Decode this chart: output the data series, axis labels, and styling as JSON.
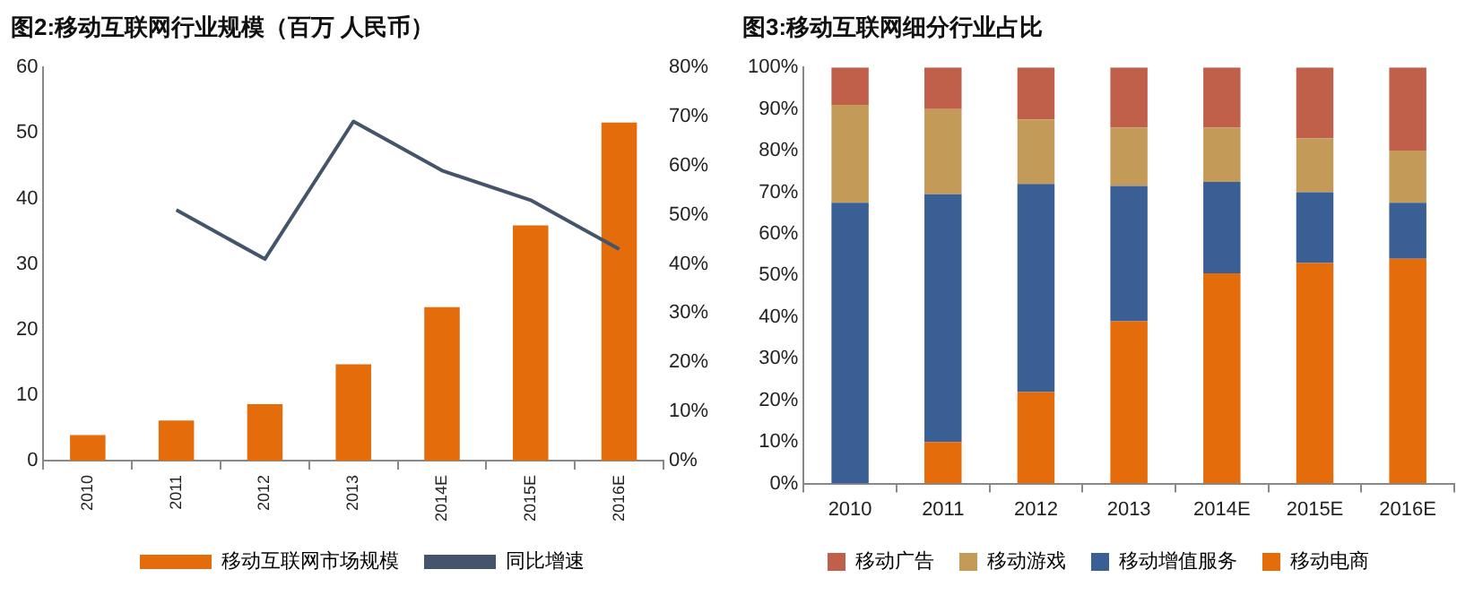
{
  "chart_data": [
    {
      "type": "bar",
      "title": "图2:移动互联网行业规模（百万 人民币）",
      "categories": [
        "2010",
        "2011",
        "2012",
        "2013",
        "2014E",
        "2015E",
        "2016E"
      ],
      "series": [
        {
          "name": "移动互联网市场规模",
          "color": "#e46c0a",
          "values": [
            3.9,
            6.1,
            8.6,
            14.7,
            23.4,
            35.9,
            51.6
          ]
        },
        {
          "name": "同比增速",
          "type": "line",
          "axis": "y2",
          "color": "#44546a",
          "values": [
            null,
            51,
            41,
            69,
            59,
            53,
            43
          ]
        }
      ],
      "ylim": [
        0,
        60
      ],
      "yticks": [
        0,
        10,
        20,
        30,
        40,
        50,
        60
      ],
      "y2lim": [
        0,
        80
      ],
      "y2ticks": [
        {
          "value": 0,
          "label": "0%"
        },
        {
          "value": 10,
          "label": "10%"
        },
        {
          "value": 20,
          "label": "20%"
        },
        {
          "value": 30,
          "label": "30%"
        },
        {
          "value": 40,
          "label": "40%"
        },
        {
          "value": 50,
          "label": "50%"
        },
        {
          "value": 60,
          "label": "60%"
        },
        {
          "value": 70,
          "label": "70%"
        },
        {
          "value": 80,
          "label": "80%"
        }
      ],
      "marker": "none",
      "legend": "bottom"
    },
    {
      "type": "bar",
      "title": "图3:移动互联网细分行业占比",
      "categories": [
        "2010",
        "2011",
        "2012",
        "2013",
        "2014E",
        "2015E",
        "2016E"
      ],
      "stacked": true,
      "series": [
        {
          "name": "移动电商",
          "color": "#e46c0a",
          "values": [
            0,
            10,
            22,
            39,
            50.5,
            53,
            54
          ]
        },
        {
          "name": "移动增值服务",
          "color": "#3a5f95",
          "values": [
            67.5,
            59.5,
            50,
            32.5,
            22,
            17,
            13.5
          ]
        },
        {
          "name": "移动游戏",
          "color": "#c49a58",
          "values": [
            23.5,
            20.5,
            15.5,
            14,
            13,
            13,
            12.5
          ]
        },
        {
          "name": "移动广告",
          "color": "#c0604a",
          "values": [
            9,
            10,
            12.5,
            14.5,
            14.5,
            17,
            20
          ]
        }
      ],
      "ylim": [
        0,
        100
      ],
      "yticks": [
        {
          "value": 0,
          "label": "0%"
        },
        {
          "value": 10,
          "label": "10%"
        },
        {
          "value": 20,
          "label": "20%"
        },
        {
          "value": 30,
          "label": "30%"
        },
        {
          "value": 40,
          "label": "40%"
        },
        {
          "value": 50,
          "label": "50%"
        },
        {
          "value": 60,
          "label": "60%"
        },
        {
          "value": 70,
          "label": "70%"
        },
        {
          "value": 80,
          "label": "80%"
        },
        {
          "value": 90,
          "label": "90%"
        },
        {
          "value": 100,
          "label": "100%"
        }
      ],
      "legend": "bottom"
    }
  ]
}
